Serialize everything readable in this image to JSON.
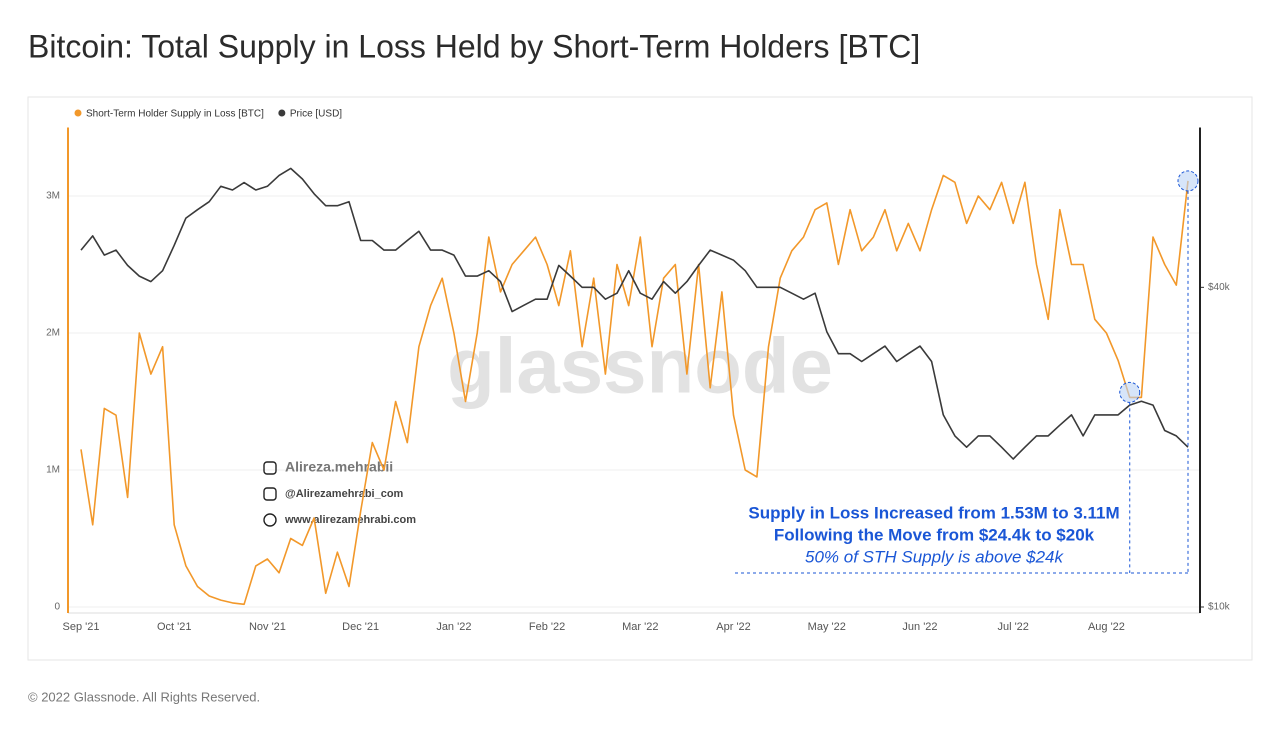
{
  "chart_data": {
    "type": "line",
    "title": "Bitcoin: Total Supply in Loss Held by Short-Term Holders [BTC]",
    "footer": "© 2022 Glassnode. All Rights Reserved.",
    "categories": [
      "Sep '21",
      null,
      null,
      null,
      null,
      null,
      null,
      null,
      "Oct '21",
      null,
      null,
      null,
      null,
      null,
      null,
      null,
      "Nov '21",
      null,
      null,
      null,
      null,
      null,
      null,
      null,
      "Dec '21",
      null,
      null,
      null,
      null,
      null,
      null,
      null,
      "Jan '22",
      null,
      null,
      null,
      null,
      null,
      null,
      null,
      "Feb '22",
      null,
      null,
      null,
      null,
      null,
      null,
      null,
      "Mar '22",
      null,
      null,
      null,
      null,
      null,
      null,
      null,
      "Apr '22",
      null,
      null,
      null,
      null,
      null,
      null,
      null,
      "May '22",
      null,
      null,
      null,
      null,
      null,
      null,
      null,
      "Jun '22",
      null,
      null,
      null,
      null,
      null,
      null,
      null,
      "Jul '22",
      null,
      null,
      null,
      null,
      null,
      null,
      null,
      "Aug '22",
      null,
      null,
      null,
      null,
      null,
      null,
      null
    ],
    "series": [
      {
        "name": "Short-Term Holder Supply in Loss [BTC]",
        "color": "#f2982a",
        "axis": "y",
        "values": [
          1150000,
          600000,
          1450000,
          1400000,
          800000,
          2000000,
          1700000,
          1900000,
          600000,
          300000,
          150000,
          80000,
          50000,
          30000,
          20000,
          300000,
          350000,
          250000,
          500000,
          450000,
          650000,
          100000,
          400000,
          150000,
          700000,
          1200000,
          1000000,
          1500000,
          1200000,
          1900000,
          2200000,
          2400000,
          2000000,
          1500000,
          2000000,
          2700000,
          2300000,
          2500000,
          2600000,
          2700000,
          2500000,
          2200000,
          2600000,
          1900000,
          2400000,
          1700000,
          2500000,
          2200000,
          2700000,
          1900000,
          2400000,
          2500000,
          1700000,
          2500000,
          1600000,
          2300000,
          1400000,
          1000000,
          950000,
          1900000,
          2400000,
          2600000,
          2700000,
          2900000,
          2950000,
          2500000,
          2900000,
          2600000,
          2700000,
          2900000,
          2600000,
          2800000,
          2600000,
          2900000,
          3150000,
          3100000,
          2800000,
          3000000,
          2900000,
          3100000,
          2800000,
          3100000,
          2500000,
          2100000,
          2900000,
          2500000,
          2500000,
          2100000,
          2000000,
          1800000,
          1530000,
          1530000,
          2700000,
          2500000,
          2350000,
          3110000
        ]
      },
      {
        "name": "Price [USD]",
        "color": "#3a3a3a",
        "axis": "y2",
        "values": [
          47000,
          50000,
          46000,
          47000,
          44000,
          42000,
          41000,
          43000,
          48000,
          54000,
          56000,
          58000,
          62000,
          61000,
          63000,
          61000,
          62000,
          65000,
          67000,
          64000,
          60000,
          57000,
          57000,
          58000,
          49000,
          49000,
          47000,
          47000,
          49000,
          51000,
          47000,
          47000,
          46000,
          42000,
          42000,
          43000,
          41000,
          36000,
          37000,
          38000,
          38000,
          44000,
          42000,
          40000,
          40000,
          38000,
          39000,
          43000,
          39000,
          38000,
          41000,
          39000,
          41000,
          44000,
          47000,
          46000,
          45000,
          43000,
          40000,
          40000,
          40000,
          39000,
          38000,
          39000,
          33000,
          30000,
          30000,
          29000,
          30000,
          31000,
          29000,
          30000,
          31000,
          29000,
          23000,
          21000,
          20000,
          21000,
          21000,
          20000,
          19000,
          20000,
          21000,
          21000,
          22000,
          23000,
          21000,
          23000,
          23000,
          23000,
          24000,
          24400,
          24000,
          21500,
          21000,
          20000
        ]
      }
    ],
    "ylim": [
      0,
      3500000
    ],
    "yticks": [
      0,
      {
        "value": 1000000,
        "label": "1M"
      },
      {
        "value": 2000000,
        "label": "2M"
      },
      {
        "value": 3000000,
        "label": "3M"
      }
    ],
    "y2lim": [
      10000,
      80000
    ],
    "y2_log_scale": true,
    "y2ticks": [
      {
        "value": 10000,
        "label": "$10k"
      },
      {
        "value": 40000,
        "label": "$40k"
      }
    ],
    "grid": true,
    "legend": "top-left",
    "annotations": [
      "Supply in Loss Increased from 1.53M to 3.11M",
      "Following the Move from $24.4k to $20k",
      "50% of STH Supply is above $24k"
    ],
    "watermark": {
      "brand": "glassnode",
      "handles": [
        "Alireza.mehrabii",
        "@Alirezamehrabi_com",
        "www.alirezamehrabi.com"
      ]
    }
  }
}
